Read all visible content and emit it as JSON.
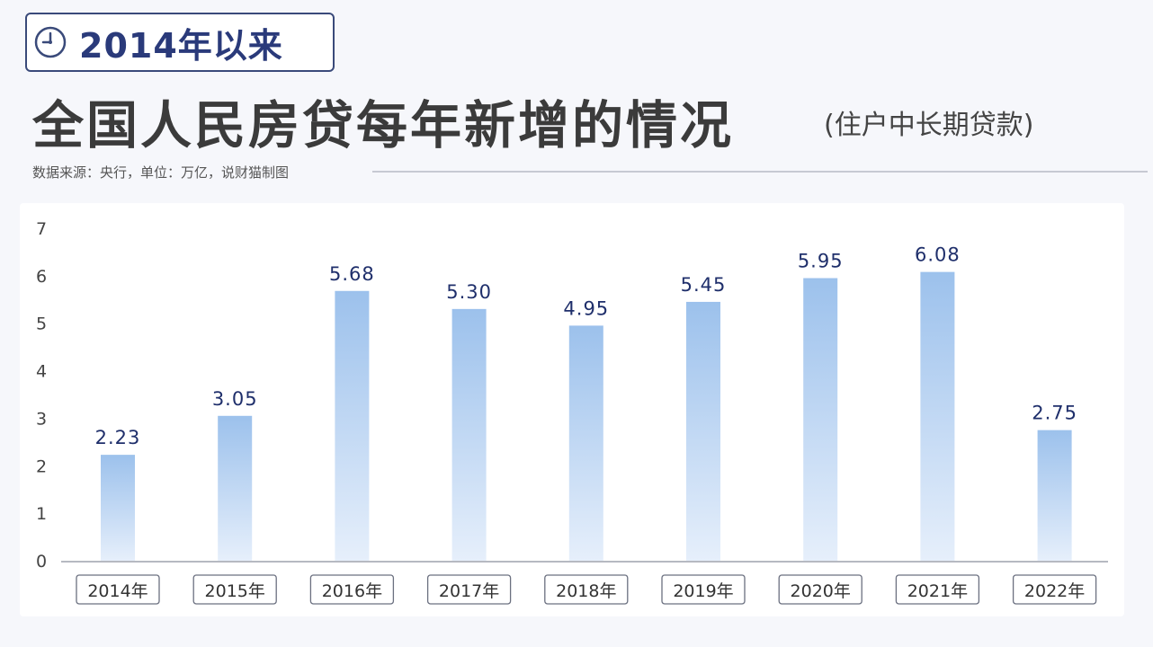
{
  "header": {
    "badge_label": "2014年以来",
    "badge_icon": "clock-icon",
    "title": "全国人民房贷每年新增的情况",
    "subtitle": "(住户中长期贷款)",
    "source": "数据来源：央行，单位：万亿，说财猫制图"
  },
  "chart_data": {
    "type": "bar",
    "title": "全国人民房贷每年新增的情况",
    "subtitle": "(住户中长期贷款)",
    "categories": [
      "2014年",
      "2015年",
      "2016年",
      "2017年",
      "2018年",
      "2019年",
      "2020年",
      "2021年",
      "2022年"
    ],
    "values": [
      2.23,
      3.05,
      5.68,
      5.3,
      4.95,
      5.45,
      5.95,
      6.08,
      2.75
    ],
    "value_labels": [
      "2.23",
      "3.05",
      "5.68",
      "5.30",
      "4.95",
      "5.45",
      "5.95",
      "6.08",
      "2.75"
    ],
    "ylim": [
      0,
      7
    ],
    "yticks": [
      "0",
      "1",
      "2",
      "3",
      "4",
      "5",
      "6",
      "7"
    ],
    "grid": false,
    "xlabel": "",
    "ylabel": "",
    "colors": {
      "bar_top": "#9cc1ec",
      "bar_bottom": "#e6effb",
      "label": "#1f2f6b",
      "axis": "#444444"
    }
  }
}
